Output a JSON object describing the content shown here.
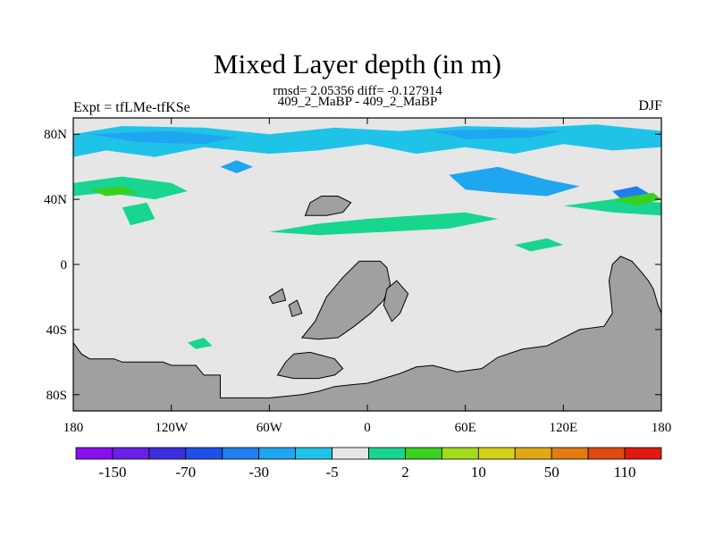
{
  "chart_data": {
    "type": "heatmap",
    "title": "Mixed Layer depth (in m)",
    "stats_line": "rmsd= 2.05356 diff= -0.127914",
    "center_string": "409_2_MaBP - 409_2_MaBP",
    "left_string": "Expt = tfLMe-tfKSe",
    "right_string": "DJF",
    "x_ticks": [
      "180",
      "120W",
      "60W",
      "0",
      "60E",
      "120E",
      "180"
    ],
    "x_values": [
      -180,
      -120,
      -60,
      0,
      60,
      120,
      180
    ],
    "y_ticks": [
      "80N",
      "40N",
      "0",
      "40S",
      "80S"
    ],
    "y_values": [
      80,
      40,
      0,
      -40,
      -80
    ],
    "xlim": [
      -180,
      180
    ],
    "ylim": [
      -90,
      90
    ],
    "colorbar": {
      "colors": [
        "#8a0ff0",
        "#6a1fe6",
        "#3c2fe0",
        "#1e50e8",
        "#1f7ff0",
        "#1ea6f0",
        "#20c3e8",
        "#e6e6e6",
        "#18d590",
        "#3ad020",
        "#a2dc18",
        "#d6d218",
        "#e0a814",
        "#e07c10",
        "#e04a10",
        "#e01a10"
      ],
      "labels": [
        {
          "text": "-150",
          "boundary": 1
        },
        {
          "text": "-70",
          "boundary": 3
        },
        {
          "text": "-30",
          "boundary": 5
        },
        {
          "text": "-5",
          "boundary": 7
        },
        {
          "text": "2",
          "boundary": 9
        },
        {
          "text": "10",
          "boundary": 11
        },
        {
          "text": "50",
          "boundary": 13
        },
        {
          "text": "110",
          "boundary": 15
        }
      ]
    },
    "land_color": "#a0a0a0",
    "neutral_color": "#e6e6e6",
    "land_regions": [
      [
        [
          -180,
          -48
        ],
        [
          -175,
          -55
        ],
        [
          -170,
          -58
        ],
        [
          -155,
          -58
        ],
        [
          -150,
          -60
        ],
        [
          -125,
          -60
        ],
        [
          -120,
          -62
        ],
        [
          -105,
          -62
        ],
        [
          -100,
          -68
        ],
        [
          -90,
          -68
        ],
        [
          -90,
          -82
        ],
        [
          -60,
          -82
        ],
        [
          -40,
          -80
        ],
        [
          -30,
          -78
        ],
        [
          -20,
          -75
        ],
        [
          -10,
          -74
        ],
        [
          0,
          -73
        ],
        [
          10,
          -70
        ],
        [
          20,
          -67
        ],
        [
          30,
          -63
        ],
        [
          40,
          -62
        ],
        [
          55,
          -66
        ],
        [
          70,
          -64
        ],
        [
          80,
          -57
        ],
        [
          95,
          -52
        ],
        [
          110,
          -50
        ],
        [
          130,
          -40
        ],
        [
          145,
          -38
        ],
        [
          150,
          -30
        ],
        [
          148,
          -10
        ],
        [
          150,
          0
        ],
        [
          155,
          5
        ],
        [
          162,
          2
        ],
        [
          168,
          -5
        ],
        [
          172,
          -10
        ],
        [
          175,
          -15
        ],
        [
          178,
          -25
        ],
        [
          180,
          -30
        ],
        [
          180,
          -90
        ],
        [
          -180,
          -90
        ]
      ],
      [
        [
          -50,
          -60
        ],
        [
          -45,
          -55
        ],
        [
          -35,
          -54
        ],
        [
          -20,
          -58
        ],
        [
          -15,
          -64
        ],
        [
          -20,
          -68
        ],
        [
          -30,
          -70
        ],
        [
          -45,
          -70
        ],
        [
          -55,
          -68
        ]
      ],
      [
        [
          -40,
          -45
        ],
        [
          -32,
          -35
        ],
        [
          -25,
          -20
        ],
        [
          -15,
          -8
        ],
        [
          -5,
          2
        ],
        [
          8,
          2
        ],
        [
          12,
          -2
        ],
        [
          14,
          -12
        ],
        [
          10,
          -22
        ],
        [
          2,
          -30
        ],
        [
          -8,
          -38
        ],
        [
          -18,
          -45
        ],
        [
          -30,
          -46
        ]
      ],
      [
        [
          -38,
          30
        ],
        [
          -35,
          38
        ],
        [
          -28,
          42
        ],
        [
          -18,
          42
        ],
        [
          -10,
          38
        ],
        [
          -15,
          32
        ],
        [
          -25,
          30
        ]
      ],
      [
        [
          15,
          -35
        ],
        [
          20,
          -30
        ],
        [
          25,
          -18
        ],
        [
          18,
          -10
        ],
        [
          12,
          -15
        ],
        [
          10,
          -25
        ]
      ],
      [
        [
          -48,
          -25
        ],
        [
          -43,
          -22
        ],
        [
          -40,
          -30
        ],
        [
          -46,
          -32
        ]
      ],
      [
        [
          -60,
          -20
        ],
        [
          -52,
          -15
        ],
        [
          -50,
          -22
        ],
        [
          -58,
          -24
        ]
      ]
    ],
    "anomaly_regions": [
      {
        "color": "#20c3e8",
        "pts": [
          [
            -180,
            80
          ],
          [
            -150,
            85
          ],
          [
            -100,
            84
          ],
          [
            -60,
            80
          ],
          [
            -20,
            84
          ],
          [
            20,
            82
          ],
          [
            60,
            85
          ],
          [
            100,
            84
          ],
          [
            140,
            86
          ],
          [
            180,
            82
          ],
          [
            180,
            72
          ],
          [
            150,
            70
          ],
          [
            120,
            74
          ],
          [
            90,
            68
          ],
          [
            60,
            72
          ],
          [
            30,
            68
          ],
          [
            0,
            74
          ],
          [
            -30,
            70
          ],
          [
            -60,
            68
          ],
          [
            -100,
            72
          ],
          [
            -130,
            66
          ],
          [
            -160,
            70
          ],
          [
            -180,
            66
          ]
        ]
      },
      {
        "color": "#1ea6f0",
        "pts": [
          [
            -170,
            80
          ],
          [
            -120,
            82
          ],
          [
            -80,
            78
          ],
          [
            -100,
            74
          ],
          [
            -140,
            75
          ]
        ]
      },
      {
        "color": "#1ea6f0",
        "pts": [
          [
            40,
            82
          ],
          [
            80,
            83
          ],
          [
            120,
            82
          ],
          [
            100,
            78
          ],
          [
            60,
            77
          ]
        ]
      },
      {
        "color": "#1ea6f0",
        "pts": [
          [
            50,
            55
          ],
          [
            80,
            60
          ],
          [
            110,
            52
          ],
          [
            130,
            48
          ],
          [
            110,
            42
          ],
          [
            80,
            44
          ],
          [
            60,
            46
          ]
        ]
      },
      {
        "color": "#1f7ff0",
        "pts": [
          [
            150,
            45
          ],
          [
            165,
            48
          ],
          [
            175,
            42
          ],
          [
            160,
            36
          ]
        ]
      },
      {
        "color": "#18d590",
        "pts": [
          [
            -180,
            50
          ],
          [
            -150,
            54
          ],
          [
            -120,
            50
          ],
          [
            -110,
            45
          ],
          [
            -130,
            40
          ],
          [
            -160,
            44
          ],
          [
            -180,
            42
          ]
        ]
      },
      {
        "color": "#3ad020",
        "pts": [
          [
            -170,
            46
          ],
          [
            -150,
            48
          ],
          [
            -140,
            44
          ],
          [
            -160,
            42
          ]
        ]
      },
      {
        "color": "#18d590",
        "pts": [
          [
            -150,
            35
          ],
          [
            -135,
            38
          ],
          [
            -130,
            28
          ],
          [
            -145,
            24
          ]
        ]
      },
      {
        "color": "#18d590",
        "pts": [
          [
            -60,
            20
          ],
          [
            -30,
            25
          ],
          [
            0,
            28
          ],
          [
            30,
            30
          ],
          [
            60,
            32
          ],
          [
            80,
            28
          ],
          [
            50,
            22
          ],
          [
            10,
            20
          ],
          [
            -30,
            18
          ]
        ]
      },
      {
        "color": "#18d590",
        "pts": [
          [
            120,
            36
          ],
          [
            150,
            40
          ],
          [
            180,
            38
          ],
          [
            180,
            30
          ],
          [
            150,
            32
          ]
        ]
      },
      {
        "color": "#3ad020",
        "pts": [
          [
            150,
            40
          ],
          [
            175,
            44
          ],
          [
            180,
            40
          ],
          [
            165,
            36
          ]
        ]
      },
      {
        "color": "#18d590",
        "pts": [
          [
            -110,
            -48
          ],
          [
            -100,
            -45
          ],
          [
            -95,
            -50
          ],
          [
            -105,
            -52
          ]
        ]
      },
      {
        "color": "#18d590",
        "pts": [
          [
            90,
            12
          ],
          [
            110,
            16
          ],
          [
            120,
            12
          ],
          [
            100,
            8
          ]
        ]
      },
      {
        "color": "#1ea6f0",
        "pts": [
          [
            -90,
            60
          ],
          [
            -80,
            64
          ],
          [
            -70,
            60
          ],
          [
            -80,
            56
          ]
        ]
      }
    ]
  }
}
